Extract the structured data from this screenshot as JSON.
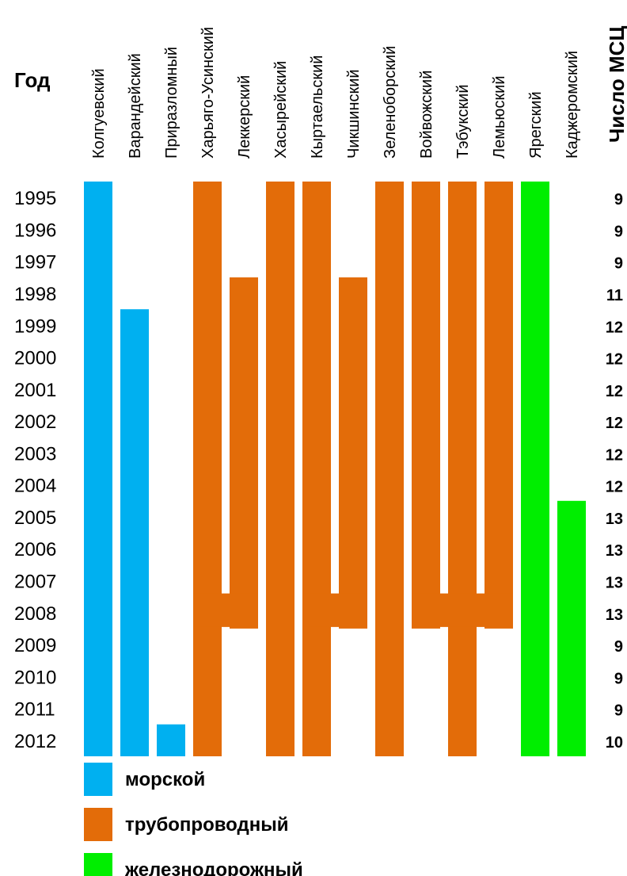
{
  "chart_data": {
    "type": "bar",
    "title": "",
    "year_header": "Год",
    "count_header": "Число МСЦ",
    "years": [
      1995,
      1996,
      1997,
      1998,
      1999,
      2000,
      2001,
      2002,
      2003,
      2004,
      2005,
      2006,
      2007,
      2008,
      2009,
      2010,
      2011,
      2012
    ],
    "counts": [
      9,
      9,
      9,
      11,
      12,
      12,
      12,
      12,
      12,
      12,
      13,
      13,
      13,
      13,
      9,
      9,
      9,
      10
    ],
    "fields": [
      {
        "name": "Колгуевский",
        "type": "sea",
        "start": 1995,
        "end": 2012
      },
      {
        "name": "Варандейский",
        "type": "sea",
        "start": 1999,
        "end": 2012
      },
      {
        "name": "Приразломный",
        "type": "sea",
        "start": 2012,
        "end": 2012
      },
      {
        "name": "Харьяго-Усинский",
        "type": "pipe",
        "start": 1995,
        "end": 2012
      },
      {
        "name": "Леккерский",
        "type": "pipe",
        "start": 1998,
        "end": 2008
      },
      {
        "name": "Хасырейский",
        "type": "pipe",
        "start": 1995,
        "end": 2012
      },
      {
        "name": "Кыртаельский",
        "type": "pipe",
        "start": 1995,
        "end": 2012
      },
      {
        "name": "Чикшинский",
        "type": "pipe",
        "start": 1998,
        "end": 2008
      },
      {
        "name": "Зеленоборский",
        "type": "pipe",
        "start": 1995,
        "end": 2012
      },
      {
        "name": "Войвожский",
        "type": "pipe",
        "start": 1995,
        "end": 2008
      },
      {
        "name": "Тэбукский",
        "type": "pipe",
        "start": 1995,
        "end": 2012
      },
      {
        "name": "Лемьюский",
        "type": "pipe",
        "start": 1995,
        "end": 2008
      },
      {
        "name": "Ярегский",
        "type": "rail",
        "start": 1995,
        "end": 2012
      },
      {
        "name": "Каджеромский",
        "type": "rail",
        "start": 2005,
        "end": 2012
      }
    ],
    "merges": [
      {
        "from": "Леккерский",
        "into": "Харьяго-Усинский",
        "year": 2008
      },
      {
        "from": "Чикшинский",
        "into": "Кыртаельский",
        "year": 2008
      },
      {
        "from": "Войвожский",
        "into": "Тэбукский",
        "year": 2008
      },
      {
        "from": "Лемьюский",
        "into": "Тэбукский",
        "year": 2008
      }
    ],
    "legend": [
      {
        "type": "sea",
        "label": "морской",
        "color": "#00B0F0"
      },
      {
        "type": "pipe",
        "label": "трубопроводный",
        "color": "#E36C09"
      },
      {
        "type": "rail",
        "label": "железнодорожный",
        "color": "#00EE00"
      }
    ]
  }
}
